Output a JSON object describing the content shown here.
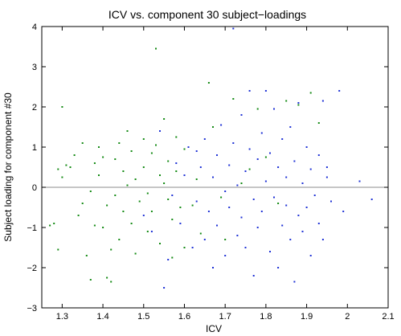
{
  "chart_data": {
    "type": "scatter",
    "title": "ICV vs. component 30 subject−loadings",
    "xlabel": "ICV",
    "ylabel": "Subject loading for component #30",
    "xlim": [
      1.25,
      2.1
    ],
    "ylim": [
      -3,
      4
    ],
    "xticks": [
      "1.3",
      "1.4",
      "1.5",
      "1.6",
      "1.7",
      "1.8",
      "1.9",
      "2",
      "2.1"
    ],
    "yticks": [
      "−3",
      "−2",
      "−1",
      "0",
      "1",
      "2",
      "3",
      "4"
    ],
    "grid": false,
    "reference_line": {
      "y": 0,
      "color": "#8c8c8c"
    },
    "series": [
      {
        "color": "#138a13",
        "points": [
          [
            1.27,
            -0.95
          ],
          [
            1.28,
            -0.9
          ],
          [
            1.29,
            -1.55
          ],
          [
            1.29,
            0.45
          ],
          [
            1.3,
            2.0
          ],
          [
            1.3,
            0.25
          ],
          [
            1.31,
            0.55
          ],
          [
            1.32,
            0.5
          ],
          [
            1.33,
            0.8
          ],
          [
            1.34,
            -0.7
          ],
          [
            1.35,
            -0.4
          ],
          [
            1.35,
            1.1
          ],
          [
            1.36,
            -1.7
          ],
          [
            1.37,
            -2.3
          ],
          [
            1.37,
            -0.1
          ],
          [
            1.38,
            0.6
          ],
          [
            1.38,
            -0.95
          ],
          [
            1.39,
            1.0
          ],
          [
            1.39,
            0.3
          ],
          [
            1.4,
            -1.0
          ],
          [
            1.4,
            0.75
          ],
          [
            1.41,
            -2.25
          ],
          [
            1.41,
            -0.45
          ],
          [
            1.42,
            -1.55
          ],
          [
            1.42,
            -2.35
          ],
          [
            1.43,
            0.7
          ],
          [
            1.43,
            -0.2
          ],
          [
            1.44,
            1.1
          ],
          [
            1.44,
            -1.3
          ],
          [
            1.45,
            0.4
          ],
          [
            1.45,
            -0.6
          ],
          [
            1.46,
            1.4
          ],
          [
            1.46,
            0.05
          ],
          [
            1.47,
            -0.9
          ],
          [
            1.47,
            0.9
          ],
          [
            1.48,
            -1.65
          ],
          [
            1.48,
            0.2
          ],
          [
            1.49,
            -0.35
          ],
          [
            1.5,
            1.2
          ],
          [
            1.5,
            0.5
          ],
          [
            1.51,
            -1.1
          ],
          [
            1.51,
            -0.15
          ],
          [
            1.52,
            0.85
          ],
          [
            1.52,
            -0.6
          ],
          [
            1.53,
            3.45
          ],
          [
            1.53,
            1.05
          ],
          [
            1.54,
            0.3
          ],
          [
            1.54,
            -1.4
          ],
          [
            1.55,
            0.1
          ],
          [
            1.55,
            1.7
          ],
          [
            1.56,
            -0.3
          ],
          [
            1.56,
            0.65
          ],
          [
            1.57,
            -1.75
          ],
          [
            1.57,
            -0.8
          ],
          [
            1.58,
            1.25
          ],
          [
            1.58,
            0.4
          ],
          [
            1.59,
            -0.5
          ],
          [
            1.6,
            -1.5
          ],
          [
            1.6,
            0.95
          ],
          [
            1.62,
            -0.45
          ],
          [
            1.63,
            0.2
          ],
          [
            1.64,
            -1.15
          ],
          [
            1.66,
            2.6
          ],
          [
            1.67,
            1.5
          ],
          [
            1.69,
            -0.25
          ],
          [
            1.7,
            -1.3
          ],
          [
            1.72,
            2.2
          ],
          [
            1.74,
            0.1
          ],
          [
            1.76,
            0.45
          ],
          [
            1.78,
            1.95
          ],
          [
            1.8,
            0.75
          ],
          [
            1.83,
            -0.4
          ],
          [
            1.85,
            2.15
          ],
          [
            1.88,
            2.05
          ],
          [
            1.91,
            2.35
          ],
          [
            1.93,
            1.6
          ]
        ]
      },
      {
        "color": "#1f32d6",
        "points": [
          [
            1.5,
            -0.7
          ],
          [
            1.52,
            -1.1
          ],
          [
            1.54,
            1.4
          ],
          [
            1.55,
            -2.5
          ],
          [
            1.56,
            -1.8
          ],
          [
            1.57,
            -0.2
          ],
          [
            1.58,
            0.6
          ],
          [
            1.59,
            -0.9
          ],
          [
            1.6,
            0.3
          ],
          [
            1.61,
            1.0
          ],
          [
            1.62,
            -1.5
          ],
          [
            1.63,
            0.9
          ],
          [
            1.63,
            -0.35
          ],
          [
            1.64,
            0.5
          ],
          [
            1.65,
            -1.3
          ],
          [
            1.65,
            1.2
          ],
          [
            1.66,
            -0.6
          ],
          [
            1.67,
            0.25
          ],
          [
            1.67,
            -2.0
          ],
          [
            1.68,
            0.8
          ],
          [
            1.68,
            -0.95
          ],
          [
            1.69,
            1.55
          ],
          [
            1.7,
            -0.1
          ],
          [
            1.7,
            -1.7
          ],
          [
            1.71,
            0.55
          ],
          [
            1.71,
            -0.5
          ],
          [
            1.72,
            3.95
          ],
          [
            1.72,
            1.1
          ],
          [
            1.73,
            -1.2
          ],
          [
            1.73,
            0.05
          ],
          [
            1.74,
            1.8
          ],
          [
            1.74,
            -0.75
          ],
          [
            1.75,
            0.4
          ],
          [
            1.75,
            -1.5
          ],
          [
            1.76,
            2.4
          ],
          [
            1.76,
            0.95
          ],
          [
            1.77,
            -0.3
          ],
          [
            1.77,
            -2.2
          ],
          [
            1.78,
            0.7
          ],
          [
            1.78,
            -1.0
          ],
          [
            1.79,
            1.35
          ],
          [
            1.79,
            -0.6
          ],
          [
            1.8,
            2.4
          ],
          [
            1.8,
            0.15
          ],
          [
            1.81,
            -1.6
          ],
          [
            1.81,
            0.85
          ],
          [
            1.82,
            -0.25
          ],
          [
            1.82,
            1.95
          ],
          [
            1.83,
            -2.0
          ],
          [
            1.83,
            0.5
          ],
          [
            1.84,
            -0.95
          ],
          [
            1.84,
            1.2
          ],
          [
            1.85,
            -0.45
          ],
          [
            1.85,
            0.25
          ],
          [
            1.86,
            1.5
          ],
          [
            1.86,
            -1.3
          ],
          [
            1.87,
            -2.35
          ],
          [
            1.87,
            0.65
          ],
          [
            1.88,
            -0.7
          ],
          [
            1.88,
            2.1
          ],
          [
            1.89,
            0.1
          ],
          [
            1.89,
            -1.1
          ],
          [
            1.9,
            1.0
          ],
          [
            1.9,
            -0.5
          ],
          [
            1.91,
            0.45
          ],
          [
            1.91,
            -1.7
          ],
          [
            1.92,
            -0.2
          ],
          [
            1.93,
            0.8
          ],
          [
            1.93,
            -0.9
          ],
          [
            1.94,
            2.15
          ],
          [
            1.94,
            -1.3
          ],
          [
            1.95,
            0.5
          ],
          [
            1.95,
            0.25
          ],
          [
            1.96,
            -0.35
          ],
          [
            1.98,
            2.4
          ],
          [
            1.99,
            -0.6
          ],
          [
            2.03,
            0.15
          ],
          [
            2.06,
            -0.3
          ]
        ]
      }
    ]
  }
}
